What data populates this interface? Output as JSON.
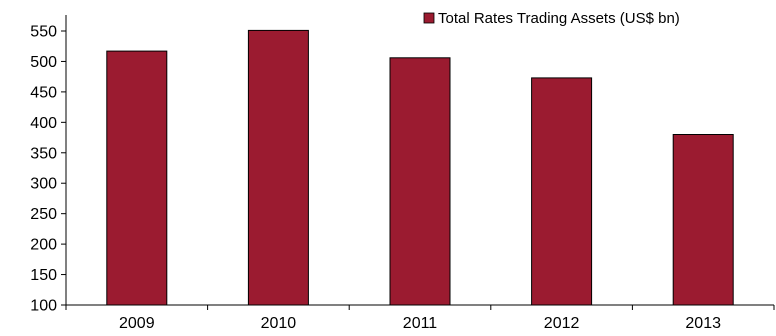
{
  "chart_data": {
    "type": "bar",
    "title": "",
    "xlabel": "",
    "ylabel": "",
    "categories": [
      "2009",
      "2010",
      "2011",
      "2012",
      "2013"
    ],
    "series": [
      {
        "name": "Total Rates Trading Assets (US$ bn)",
        "values": [
          517,
          551,
          506,
          473,
          380
        ],
        "color": "#9B1B30"
      }
    ],
    "ylim": [
      100,
      550
    ],
    "yticks": [
      100,
      150,
      200,
      250,
      300,
      350,
      400,
      450,
      500,
      550
    ],
    "grid": false,
    "legend_position": "top-right"
  }
}
